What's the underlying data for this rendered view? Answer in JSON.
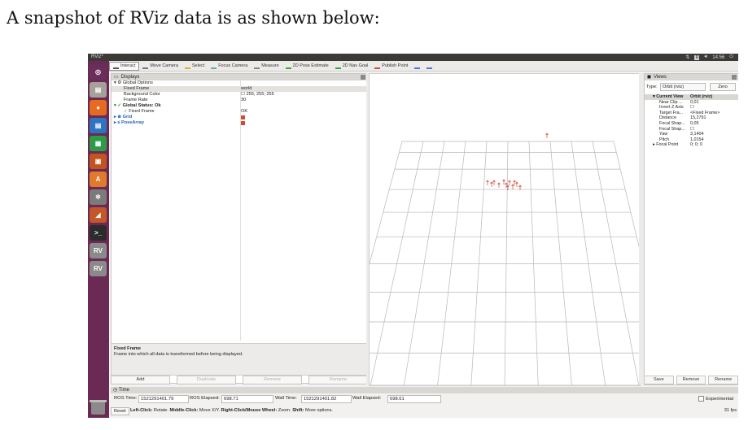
{
  "caption": "A snapshot of RViz data is as shown below:",
  "window": {
    "title": "RViz*",
    "clock": "14:56",
    "tray_box": "R"
  },
  "launcher": [
    {
      "name": "dash-icon",
      "color": "#6a2e5b",
      "glyph": "◎"
    },
    {
      "name": "files-icon",
      "color": "#a5a09a",
      "glyph": "▤"
    },
    {
      "name": "firefox-icon",
      "color": "#e66a1f",
      "glyph": "●"
    },
    {
      "name": "writer-icon",
      "color": "#2f74c0",
      "glyph": "▤"
    },
    {
      "name": "calc-icon",
      "color": "#2e9b48",
      "glyph": "▦"
    },
    {
      "name": "impress-icon",
      "color": "#c2541f",
      "glyph": "▣"
    },
    {
      "name": "software-center-icon",
      "color": "#e27a2c",
      "glyph": "A"
    },
    {
      "name": "settings-icon",
      "color": "#7b7b7b",
      "glyph": "✲"
    },
    {
      "name": "app-icon",
      "color": "#c4572a",
      "glyph": "◢"
    },
    {
      "name": "terminal-icon",
      "color": "#2c2c2c",
      "glyph": ">_"
    },
    {
      "name": "rviz-icon-1",
      "color": "#8a8a8a",
      "glyph": "RV"
    },
    {
      "name": "rviz-icon-2",
      "color": "#8a8a8a",
      "glyph": "RV"
    }
  ],
  "toolbar": [
    {
      "label": "Interact",
      "active": true,
      "icon": "interact-icon"
    },
    {
      "label": "Move Camera",
      "icon": "move-camera-icon"
    },
    {
      "label": "Select",
      "icon": "select-icon"
    },
    {
      "label": "Focus Camera",
      "icon": "focus-camera-icon"
    },
    {
      "label": "Measure",
      "icon": "measure-icon"
    },
    {
      "label": "2D Pose Estimate",
      "icon": "pose-estimate-icon"
    },
    {
      "label": "2D Nav Goal",
      "icon": "nav-goal-icon"
    },
    {
      "label": "Publish Point",
      "icon": "publish-point-icon"
    },
    {
      "label": "",
      "icon": "plus-icon"
    },
    {
      "label": "",
      "icon": "minus-icon"
    }
  ],
  "displays": {
    "title": "Displays",
    "rows": [
      {
        "indent": 0,
        "prefix": "▾ ⚙",
        "key": "Global Options",
        "value": ""
      },
      {
        "indent": 1,
        "key": "Fixed Frame",
        "value": "world",
        "selected": true
      },
      {
        "indent": 1,
        "key": "Background Color",
        "value": "☐ 255; 255; 255"
      },
      {
        "indent": 1,
        "key": "Frame Rate",
        "value": "30"
      },
      {
        "indent": 0,
        "prefix": "▾ ✓",
        "key": "Global Status: Ok",
        "value": "",
        "bold": true
      },
      {
        "indent": 1,
        "prefix": "✓",
        "key": "Fixed Frame",
        "value": "OK"
      },
      {
        "indent": 0,
        "prefix": "▸ ⊕",
        "key": "Grid",
        "value": "",
        "blue": true,
        "check": true
      },
      {
        "indent": 0,
        "prefix": "▸ ≤",
        "key": "PoseArray",
        "value": "",
        "blue": true,
        "check": true
      }
    ],
    "desc_title": "Fixed Frame",
    "desc_text": "Frame into which all data is transformed before being displayed.",
    "buttons": [
      {
        "label": "Add",
        "disabled": false
      },
      {
        "label": "Duplicate",
        "disabled": true
      },
      {
        "label": "Remove",
        "disabled": true
      },
      {
        "label": "Rename",
        "disabled": true
      }
    ]
  },
  "views": {
    "title": "Views",
    "type_label": "Type:",
    "type_value": "Orbit (rviz)",
    "zero": "Zero",
    "rows": [
      {
        "key": "▾ Current View",
        "value": "Orbit (rviz)",
        "head": true
      },
      {
        "key": "Near Clip ...",
        "value": "0,01"
      },
      {
        "key": "Invert Z Axis",
        "value": "☐"
      },
      {
        "key": "Target Fra...",
        "value": "<Fixed Frame>"
      },
      {
        "key": "Distance",
        "value": "15,2791"
      },
      {
        "key": "Focal Shap...",
        "value": "0,05"
      },
      {
        "key": "Focal Shap...",
        "value": "☐"
      },
      {
        "key": "Yaw",
        "value": "3,1404"
      },
      {
        "key": "Pitch",
        "value": "1,0154"
      },
      {
        "key": "▸ Focal Point",
        "value": "0; 0; 0"
      }
    ],
    "buttons": [
      "Save",
      "Remove",
      "Rename"
    ]
  },
  "time": {
    "title": "Time",
    "ros_time_label": "ROS Time:",
    "ros_time": "1521291401.79",
    "ros_elapsed_label": "ROS Elapsed:",
    "ros_elapsed": "698.71",
    "wall_time_label": "Wall Time:",
    "wall_time": "1521291401.82",
    "wall_elapsed_label": "Wall Elapsed:",
    "wall_elapsed": "698.61",
    "experimental": "Experimental"
  },
  "status": {
    "reset": "Reset",
    "hint": "Left-Click: Rotate. Middle-Click: Move X/Y. Right-Click/Mouse Wheel: Zoom. Shift: More options.",
    "fps": "31 fps"
  },
  "accent": "#d14b3a"
}
